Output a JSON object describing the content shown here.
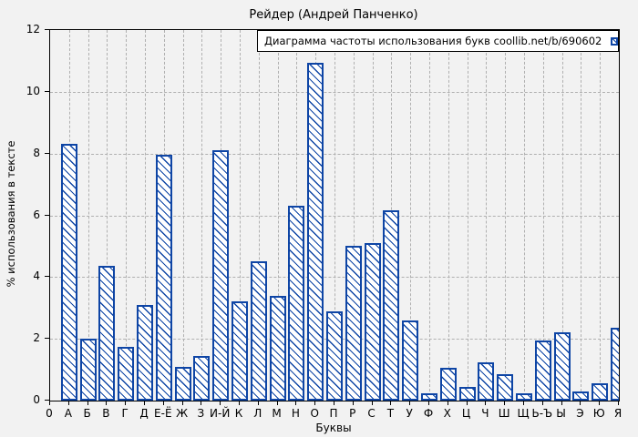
{
  "figure": {
    "background": "#f2f2f2",
    "bar_color": "#0e45a5",
    "grid_color": "#b0b0b0",
    "legend_background": "#ffffff"
  },
  "legend": {
    "label": "Диаграмма частоты использования букв coollib.net/b/690602"
  },
  "chart_data": {
    "type": "bar",
    "title": "Рейдер (Андрей Панченко)",
    "xlabel": "Буквы",
    "ylabel": "% использования в тексте",
    "ylim": [
      0,
      12
    ],
    "yticks": [
      0,
      2,
      4,
      6,
      8,
      10,
      12
    ],
    "grid": true,
    "legend_position": "top-right-inside",
    "series_name": "Диаграмма частоты использования букв coollib.net/b/690602",
    "bar_style": "white fill, blue diagonal hatch, blue border",
    "categories": [
      "0",
      "А",
      "Б",
      "В",
      "Г",
      "Д",
      "Е-Ё",
      "Ж",
      "З",
      "И-Й",
      "К",
      "Л",
      "М",
      "Н",
      "О",
      "П",
      "Р",
      "С",
      "Т",
      "У",
      "Ф",
      "Х",
      "Ц",
      "Ч",
      "Ш",
      "Щ",
      "Ь-Ъ",
      "Ы",
      "Э",
      "Ю",
      "Я"
    ],
    "values": [
      0,
      8.3,
      2.0,
      4.35,
      1.75,
      3.1,
      7.95,
      1.1,
      1.45,
      8.1,
      3.2,
      4.5,
      3.4,
      6.3,
      10.95,
      2.9,
      5.0,
      5.1,
      6.15,
      2.6,
      0.25,
      1.05,
      0.45,
      1.25,
      0.85,
      0.25,
      1.95,
      2.2,
      0.3,
      0.55,
      2.35
    ]
  }
}
